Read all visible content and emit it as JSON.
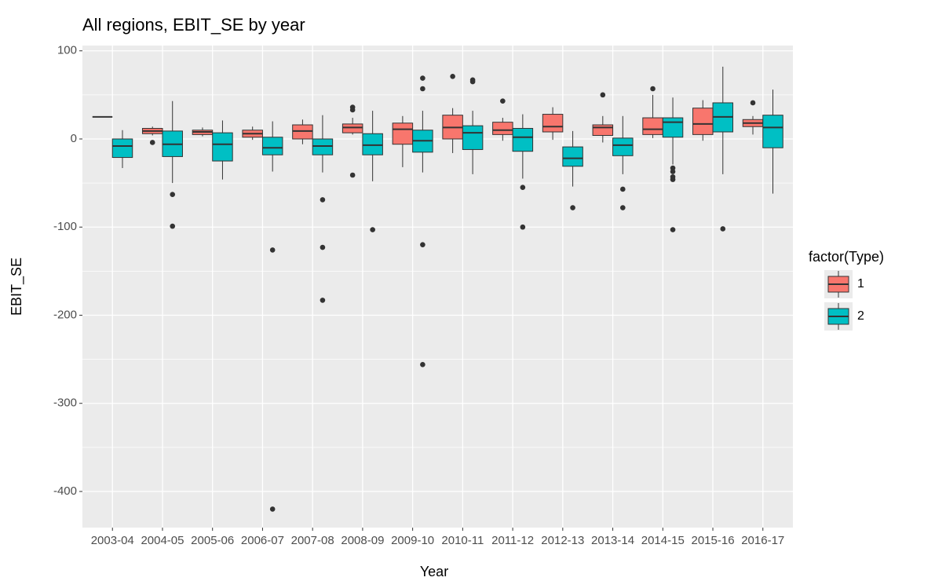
{
  "chart_data": {
    "type": "boxplot",
    "title": "All regions, EBIT_SE by year",
    "x_label": "Year",
    "y_label": "EBIT_SE",
    "legend_title": "factor(Type)",
    "legend_position": "right",
    "grid": true,
    "categories": [
      "2003-04",
      "2004-05",
      "2005-06",
      "2006-07",
      "2007-08",
      "2008-09",
      "2009-10",
      "2010-11",
      "2011-12",
      "2012-13",
      "2013-14",
      "2014-15",
      "2015-16",
      "2016-17"
    ],
    "ylim": [
      -441,
      106
    ],
    "yticks": [
      -400,
      -300,
      -200,
      -100,
      0,
      100
    ],
    "series": [
      {
        "name": "1",
        "color": "#F8766D",
        "low": [
          25,
          4,
          3,
          -1,
          -6,
          5,
          -32,
          -16,
          -2,
          -1,
          -4,
          1,
          -2,
          5
        ],
        "q1": [
          25,
          6,
          5,
          2,
          0,
          7,
          -6,
          0,
          5,
          8,
          4,
          5,
          5,
          14
        ],
        "median": [
          25,
          9,
          8,
          6,
          9,
          13,
          11,
          13,
          10,
          14,
          13,
          11,
          17,
          18
        ],
        "q3": [
          25,
          12,
          10,
          10,
          16,
          17,
          18,
          27,
          19,
          28,
          16,
          24,
          35,
          22
        ],
        "high": [
          25,
          14,
          13,
          14,
          22,
          24,
          26,
          35,
          24,
          36,
          26,
          50,
          44,
          26
        ],
        "outliers": [
          [],
          [
            -4
          ],
          [],
          [],
          [],
          [
            36,
            33,
            -41
          ],
          [],
          [
            71
          ],
          [
            43
          ],
          [],
          [
            50
          ],
          [
            57
          ],
          [],
          [
            41
          ]
        ]
      },
      {
        "name": "2",
        "color": "#00BFC4",
        "low": [
          -33,
          -50,
          -46,
          -37,
          -38,
          -48,
          -38,
          -40,
          -45,
          -54,
          -40,
          -29,
          -40,
          -62
        ],
        "q1": [
          -21,
          -20,
          -25,
          -18,
          -18,
          -18,
          -15,
          -12,
          -14,
          -31,
          -19,
          2,
          8,
          -10
        ],
        "median": [
          -8,
          -6,
          -6,
          -10,
          -8,
          -7,
          -2,
          7,
          2,
          -22,
          -7,
          19,
          25,
          13
        ],
        "q3": [
          0,
          9,
          7,
          2,
          0,
          6,
          10,
          15,
          12,
          -9,
          1,
          24,
          41,
          27
        ],
        "high": [
          10,
          43,
          21,
          20,
          27,
          32,
          32,
          32,
          28,
          9,
          26,
          47,
          82,
          56
        ],
        "outliers": [
          [],
          [
            -63,
            -99
          ],
          [],
          [
            -126,
            -420
          ],
          [
            -69,
            -123,
            -183
          ],
          [
            -103
          ],
          [
            69,
            57,
            -120,
            -256
          ],
          [
            67,
            65
          ],
          [
            -55,
            -100
          ],
          [
            -78
          ],
          [
            -57,
            -78
          ],
          [
            -33,
            -37,
            -43,
            -46,
            -103
          ],
          [
            -102
          ],
          []
        ]
      }
    ]
  }
}
